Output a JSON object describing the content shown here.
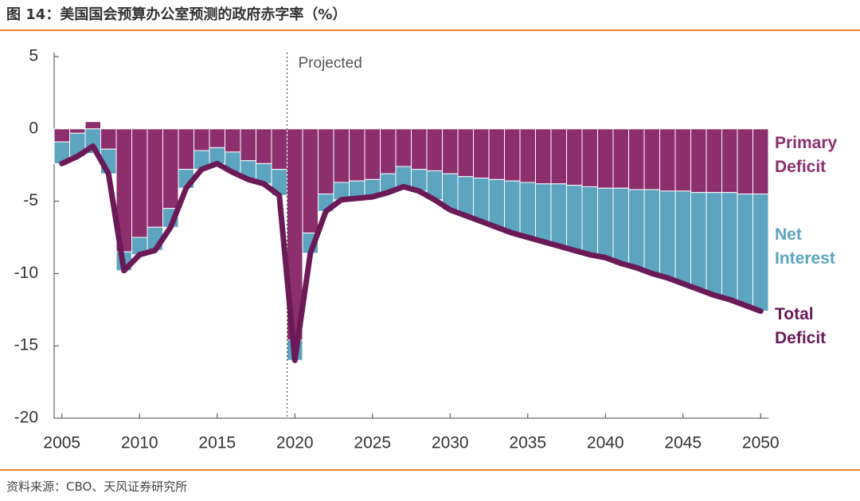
{
  "chart_data": {
    "type": "bar",
    "title": "图 14：美国国会预算办公室预测的政府赤字率（%）",
    "source": "资料来源：CBO、天风证券研究所",
    "annotation": {
      "text": "Projected",
      "x": 2019.5
    },
    "x": [
      2005,
      2006,
      2007,
      2008,
      2009,
      2010,
      2011,
      2012,
      2013,
      2014,
      2015,
      2016,
      2017,
      2018,
      2019,
      2020,
      2021,
      2022,
      2023,
      2024,
      2025,
      2026,
      2027,
      2028,
      2029,
      2030,
      2031,
      2032,
      2033,
      2034,
      2035,
      2036,
      2037,
      2038,
      2039,
      2040,
      2041,
      2042,
      2043,
      2044,
      2045,
      2046,
      2047,
      2048,
      2049,
      2050
    ],
    "series": [
      {
        "name": "Primary Deficit",
        "color": "#8c2f6c",
        "kind": "bar",
        "values": [
          -0.9,
          -0.3,
          0.5,
          -1.4,
          -8.5,
          -7.5,
          -6.8,
          -5.5,
          -2.8,
          -1.5,
          -1.3,
          -1.6,
          -2.2,
          -2.4,
          -2.8,
          -14.6,
          -7.2,
          -4.5,
          -3.7,
          -3.6,
          -3.5,
          -3.1,
          -2.6,
          -2.8,
          -2.9,
          -3.1,
          -3.3,
          -3.4,
          -3.5,
          -3.6,
          -3.7,
          -3.8,
          -3.8,
          -3.9,
          -4.0,
          -4.1,
          -4.1,
          -4.2,
          -4.2,
          -4.3,
          -4.3,
          -4.4,
          -4.4,
          -4.4,
          -4.5,
          -4.5
        ]
      },
      {
        "name": "Net Interest",
        "color": "#5ca4c0",
        "kind": "bar",
        "values": [
          -1.5,
          -1.6,
          -1.7,
          -1.7,
          -1.3,
          -1.2,
          -1.6,
          -1.3,
          -1.3,
          -1.3,
          -1.1,
          -1.4,
          -1.3,
          -1.4,
          -1.8,
          -1.4,
          -1.4,
          -1.2,
          -1.2,
          -1.2,
          -1.2,
          -1.3,
          -1.4,
          -1.5,
          -2.0,
          -2.5,
          -2.7,
          -3.0,
          -3.3,
          -3.6,
          -3.8,
          -4.0,
          -4.3,
          -4.5,
          -4.7,
          -4.8,
          -5.2,
          -5.4,
          -5.8,
          -6.0,
          -6.4,
          -6.7,
          -7.1,
          -7.4,
          -7.7,
          -8.1
        ]
      },
      {
        "name": "Total Deficit",
        "color": "#6a1a57",
        "kind": "line",
        "values": [
          -2.4,
          -1.9,
          -1.2,
          -3.1,
          -9.8,
          -8.7,
          -8.4,
          -6.8,
          -4.1,
          -2.8,
          -2.4,
          -3.0,
          -3.5,
          -3.8,
          -4.6,
          -16.0,
          -8.6,
          -5.7,
          -4.9,
          -4.8,
          -4.7,
          -4.4,
          -4.0,
          -4.3,
          -4.9,
          -5.6,
          -6.0,
          -6.4,
          -6.8,
          -7.2,
          -7.5,
          -7.8,
          -8.1,
          -8.4,
          -8.7,
          -8.9,
          -9.3,
          -9.6,
          -10.0,
          -10.3,
          -10.7,
          -11.1,
          -11.5,
          -11.8,
          -12.2,
          -12.6
        ]
      }
    ],
    "xlim": [
      2004.5,
      2050.5
    ],
    "xticks": [
      2005,
      2010,
      2015,
      2020,
      2025,
      2030,
      2035,
      2040,
      2045,
      2050
    ],
    "ylim": [
      -20,
      5
    ],
    "yticks": [
      -20,
      -15,
      -10,
      -5,
      0,
      5
    ]
  }
}
